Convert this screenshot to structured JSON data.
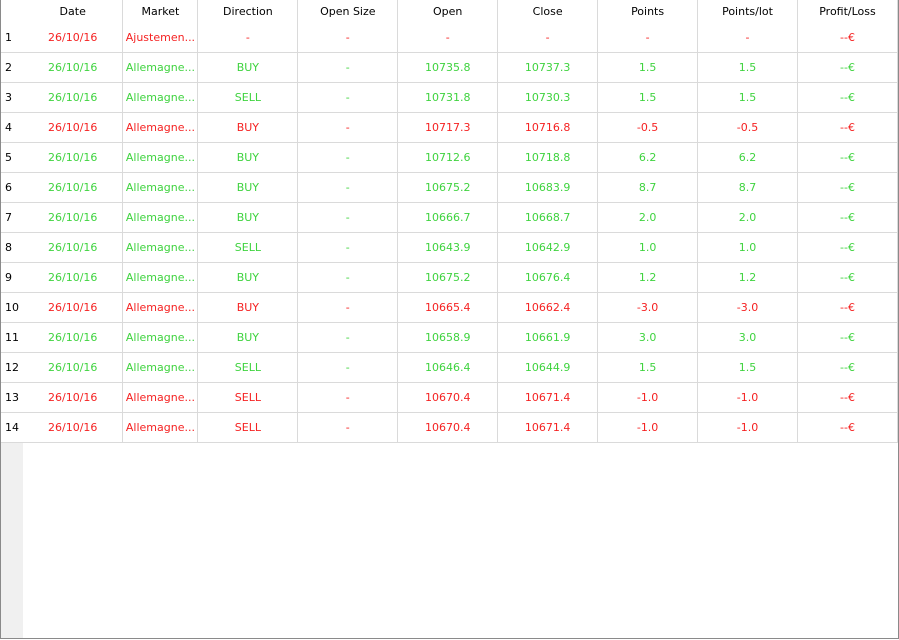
{
  "colors": {
    "profit": "#3fd33f",
    "loss": "#f52222"
  },
  "columns": [
    "",
    "Date",
    "Market",
    "Direction",
    "Open Size",
    "Open",
    "Close",
    "Points",
    "Points/lot",
    "Profit/Loss"
  ],
  "rows": [
    {
      "status": "red",
      "cells": [
        "1",
        "26/10/16",
        "Ajustemen...",
        "-",
        "-",
        "-",
        "-",
        "-",
        "-",
        "--€"
      ]
    },
    {
      "status": "green",
      "cells": [
        "2",
        "26/10/16",
        "Allemagne...",
        "BUY",
        "-",
        "10735.8",
        "10737.3",
        "1.5",
        "1.5",
        "--€"
      ]
    },
    {
      "status": "green",
      "cells": [
        "3",
        "26/10/16",
        "Allemagne...",
        "SELL",
        "-",
        "10731.8",
        "10730.3",
        "1.5",
        "1.5",
        "--€"
      ]
    },
    {
      "status": "red",
      "cells": [
        "4",
        "26/10/16",
        "Allemagne...",
        "BUY",
        "-",
        "10717.3",
        "10716.8",
        "-0.5",
        "-0.5",
        "--€"
      ]
    },
    {
      "status": "green",
      "cells": [
        "5",
        "26/10/16",
        "Allemagne...",
        "BUY",
        "-",
        "10712.6",
        "10718.8",
        "6.2",
        "6.2",
        "--€"
      ]
    },
    {
      "status": "green",
      "cells": [
        "6",
        "26/10/16",
        "Allemagne...",
        "BUY",
        "-",
        "10675.2",
        "10683.9",
        "8.7",
        "8.7",
        "--€"
      ]
    },
    {
      "status": "green",
      "cells": [
        "7",
        "26/10/16",
        "Allemagne...",
        "BUY",
        "-",
        "10666.7",
        "10668.7",
        "2.0",
        "2.0",
        "--€"
      ]
    },
    {
      "status": "green",
      "cells": [
        "8",
        "26/10/16",
        "Allemagne...",
        "SELL",
        "-",
        "10643.9",
        "10642.9",
        "1.0",
        "1.0",
        "--€"
      ]
    },
    {
      "status": "green",
      "cells": [
        "9",
        "26/10/16",
        "Allemagne...",
        "BUY",
        "-",
        "10675.2",
        "10676.4",
        "1.2",
        "1.2",
        "--€"
      ]
    },
    {
      "status": "red",
      "cells": [
        "10",
        "26/10/16",
        "Allemagne...",
        "BUY",
        "-",
        "10665.4",
        "10662.4",
        "-3.0",
        "-3.0",
        "--€"
      ]
    },
    {
      "status": "green",
      "cells": [
        "11",
        "26/10/16",
        "Allemagne...",
        "BUY",
        "-",
        "10658.9",
        "10661.9",
        "3.0",
        "3.0",
        "--€"
      ]
    },
    {
      "status": "green",
      "cells": [
        "12",
        "26/10/16",
        "Allemagne...",
        "SELL",
        "-",
        "10646.4",
        "10644.9",
        "1.5",
        "1.5",
        "--€"
      ]
    },
    {
      "status": "red",
      "cells": [
        "13",
        "26/10/16",
        "Allemagne...",
        "SELL",
        "-",
        "10670.4",
        "10671.4",
        "-1.0",
        "-1.0",
        "--€"
      ]
    },
    {
      "status": "red",
      "cells": [
        "14",
        "26/10/16",
        "Allemagne...",
        "SELL",
        "-",
        "10670.4",
        "10671.4",
        "-1.0",
        "-1.0",
        "--€"
      ]
    }
  ]
}
